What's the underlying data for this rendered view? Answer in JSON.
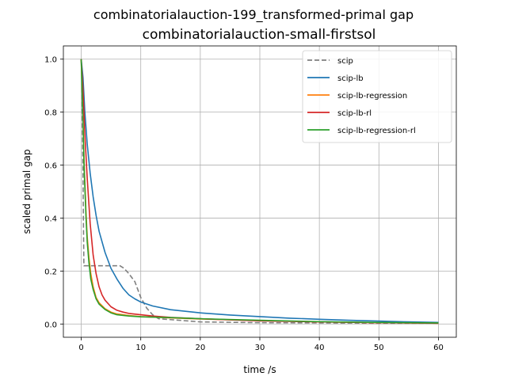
{
  "chart_data": {
    "type": "line",
    "suptitle": "combinatorialauction-199_transformed-primal gap",
    "title": "combinatorialauction-small-firstsol",
    "xlabel": "time /s",
    "ylabel": "scaled primal gap",
    "xlim": [
      -3,
      63
    ],
    "ylim": [
      -0.05,
      1.05
    ],
    "xticks": [
      0,
      10,
      20,
      30,
      40,
      50,
      60
    ],
    "yticks": [
      0.0,
      0.2,
      0.4,
      0.6,
      0.8,
      1.0
    ],
    "grid": true,
    "legend_position": "upper-right",
    "series": [
      {
        "name": "scip",
        "color": "#808080",
        "dash": "dashed",
        "x": [
          0,
          0.1,
          0.2,
          0.3,
          0.4,
          0.45,
          0.5,
          6.5,
          7.2,
          8.0,
          9.0,
          10.0,
          11.0,
          12.0,
          13.0,
          16.0,
          20.0,
          30.0,
          40.0,
          50.0,
          60.0
        ],
        "y": [
          1.0,
          0.95,
          0.75,
          0.55,
          0.3,
          0.22,
          0.22,
          0.22,
          0.21,
          0.19,
          0.16,
          0.1,
          0.06,
          0.035,
          0.02,
          0.015,
          0.008,
          0.005,
          0.004,
          0.003,
          0.003
        ]
      },
      {
        "name": "scip-lb",
        "color": "#1f77b4",
        "dash": "solid",
        "x": [
          0,
          0.3,
          0.6,
          1.0,
          1.5,
          2.0,
          2.5,
          3.0,
          4.0,
          5.0,
          6.0,
          7.0,
          8.0,
          9.0,
          10.0,
          12.0,
          15.0,
          20.0,
          25.0,
          30.0,
          35.0,
          40.0,
          45.0,
          50.0,
          55.0,
          60.0
        ],
        "y": [
          1.0,
          0.93,
          0.8,
          0.68,
          0.57,
          0.48,
          0.41,
          0.35,
          0.27,
          0.21,
          0.17,
          0.135,
          0.11,
          0.095,
          0.083,
          0.068,
          0.054,
          0.042,
          0.034,
          0.028,
          0.022,
          0.018,
          0.014,
          0.011,
          0.008,
          0.006
        ]
      },
      {
        "name": "scip-lb-regression",
        "color": "#ff7f0e",
        "dash": "solid",
        "x": [
          0,
          0.2,
          0.5,
          0.8,
          1.0,
          1.3,
          1.6,
          2.0,
          2.5,
          3.0,
          4.0,
          5.0,
          6.0,
          8.0,
          10.0,
          15.0,
          20.0,
          30.0,
          40.0,
          50.0,
          60.0
        ],
        "y": [
          1.0,
          0.85,
          0.6,
          0.42,
          0.33,
          0.25,
          0.19,
          0.14,
          0.1,
          0.08,
          0.058,
          0.045,
          0.038,
          0.032,
          0.028,
          0.023,
          0.019,
          0.013,
          0.008,
          0.005,
          0.003
        ]
      },
      {
        "name": "scip-lb-rl",
        "color": "#d62728",
        "dash": "solid",
        "x": [
          0,
          0.3,
          0.6,
          1.0,
          1.5,
          2.0,
          2.5,
          3.0,
          3.5,
          4.0,
          5.0,
          6.0,
          7.0,
          8.0,
          10.0,
          12.0,
          15.0,
          20.0,
          30.0,
          40.0,
          50.0,
          60.0
        ],
        "y": [
          1.0,
          0.88,
          0.72,
          0.55,
          0.38,
          0.26,
          0.19,
          0.14,
          0.11,
          0.09,
          0.065,
          0.052,
          0.045,
          0.04,
          0.035,
          0.03,
          0.025,
          0.02,
          0.012,
          0.008,
          0.005,
          0.003
        ]
      },
      {
        "name": "scip-lb-regression-rl",
        "color": "#2ca02c",
        "dash": "solid",
        "x": [
          0,
          0.2,
          0.5,
          0.8,
          1.0,
          1.3,
          1.6,
          2.0,
          2.5,
          3.0,
          4.0,
          5.0,
          6.0,
          8.0,
          10.0,
          15.0,
          20.0,
          30.0,
          40.0,
          50.0,
          60.0
        ],
        "y": [
          1.0,
          0.84,
          0.58,
          0.4,
          0.31,
          0.23,
          0.17,
          0.13,
          0.095,
          0.075,
          0.055,
          0.042,
          0.035,
          0.03,
          0.027,
          0.024,
          0.02,
          0.014,
          0.009,
          0.006,
          0.004
        ]
      }
    ]
  }
}
